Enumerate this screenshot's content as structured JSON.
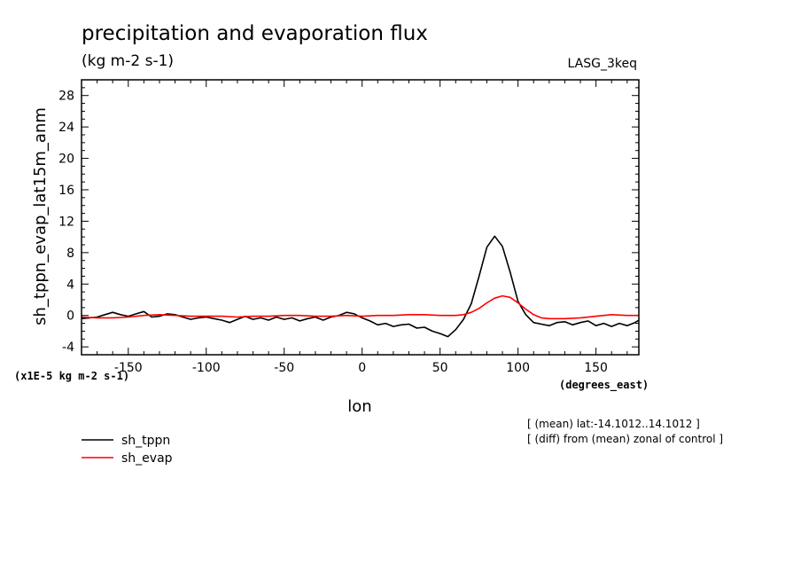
{
  "chart_data": {
    "type": "line",
    "title": "precipitation and evaporation flux",
    "subtitle": "(kg m-2 s-1)",
    "model_label": "LASG_3keq",
    "ylabel": "sh_tppn_evap_lat15m_anm",
    "yunit": "(x1E-5 kg m-2 s-1)",
    "xlabel": "lon",
    "xunit": "(degrees_east)",
    "xlim": [
      -180,
      177.5
    ],
    "ylim": [
      -5,
      30
    ],
    "xticks": [
      -150,
      -100,
      -50,
      0,
      50,
      100,
      150
    ],
    "xtick_labels": [
      "-150",
      "-100",
      "-50",
      "0",
      "50",
      "100",
      "150"
    ],
    "yticks": [
      -4,
      0,
      4,
      8,
      12,
      16,
      20,
      24,
      28
    ],
    "ytick_labels": [
      "-4",
      "0",
      "4",
      "8",
      "12",
      "16",
      "20",
      "24",
      "28"
    ],
    "notes": [
      "[ (mean) lat:-14.1012..14.1012 ]",
      "[ (diff) from (mean) zonal of control ]"
    ],
    "series": [
      {
        "name": "sh_tppn",
        "color": "#000000",
        "x": [
          -180,
          -175,
          -170,
          -165,
          -160,
          -155,
          -150,
          -145,
          -140,
          -135,
          -130,
          -125,
          -120,
          -115,
          -110,
          -105,
          -100,
          -95,
          -90,
          -85,
          -80,
          -75,
          -70,
          -65,
          -60,
          -55,
          -50,
          -45,
          -40,
          -35,
          -30,
          -25,
          -20,
          -15,
          -10,
          -5,
          0,
          5,
          10,
          15,
          20,
          25,
          30,
          35,
          40,
          45,
          50,
          55,
          60,
          65,
          70,
          75,
          80,
          85,
          90,
          95,
          100,
          105,
          110,
          115,
          120,
          125,
          130,
          135,
          140,
          145,
          150,
          155,
          160,
          165,
          170,
          175,
          177.5
        ],
        "values": [
          -0.4,
          -0.3,
          -0.2,
          0.1,
          0.4,
          0.1,
          -0.1,
          0.2,
          0.5,
          -0.2,
          -0.1,
          0.2,
          0.1,
          -0.2,
          -0.5,
          -0.3,
          -0.2,
          -0.4,
          -0.6,
          -0.9,
          -0.5,
          -0.1,
          -0.5,
          -0.3,
          -0.6,
          -0.2,
          -0.5,
          -0.3,
          -0.7,
          -0.4,
          -0.2,
          -0.6,
          -0.2,
          0.0,
          0.4,
          0.2,
          -0.3,
          -0.7,
          -1.2,
          -1.0,
          -1.4,
          -1.2,
          -1.1,
          -1.6,
          -1.5,
          -2.0,
          -2.3,
          -2.7,
          -1.8,
          -0.5,
          1.5,
          5.0,
          8.7,
          10.1,
          8.8,
          5.5,
          1.8,
          0.1,
          -0.9,
          -1.1,
          -1.3,
          -0.9,
          -0.8,
          -1.2,
          -0.9,
          -0.7,
          -1.3,
          -1.0,
          -1.4,
          -1.0,
          -1.3,
          -0.9,
          -0.6
        ]
      },
      {
        "name": "sh_evap",
        "color": "#ff0000",
        "x": [
          -180,
          -170,
          -160,
          -150,
          -140,
          -130,
          -120,
          -110,
          -100,
          -90,
          -80,
          -70,
          -60,
          -50,
          -40,
          -30,
          -20,
          -10,
          0,
          10,
          20,
          30,
          40,
          50,
          60,
          65,
          70,
          75,
          80,
          85,
          90,
          95,
          100,
          105,
          110,
          115,
          120,
          130,
          140,
          150,
          160,
          170,
          177.5
        ],
        "values": [
          -0.2,
          -0.3,
          -0.3,
          -0.2,
          0.0,
          0.1,
          0.0,
          -0.1,
          -0.1,
          -0.1,
          -0.2,
          -0.1,
          -0.1,
          0.0,
          0.0,
          -0.1,
          -0.1,
          0.0,
          -0.1,
          0.0,
          0.0,
          0.1,
          0.1,
          0.0,
          0.0,
          0.1,
          0.4,
          0.9,
          1.6,
          2.2,
          2.5,
          2.3,
          1.6,
          0.8,
          0.1,
          -0.3,
          -0.4,
          -0.4,
          -0.3,
          -0.1,
          0.1,
          0.0,
          0.0
        ]
      }
    ]
  }
}
